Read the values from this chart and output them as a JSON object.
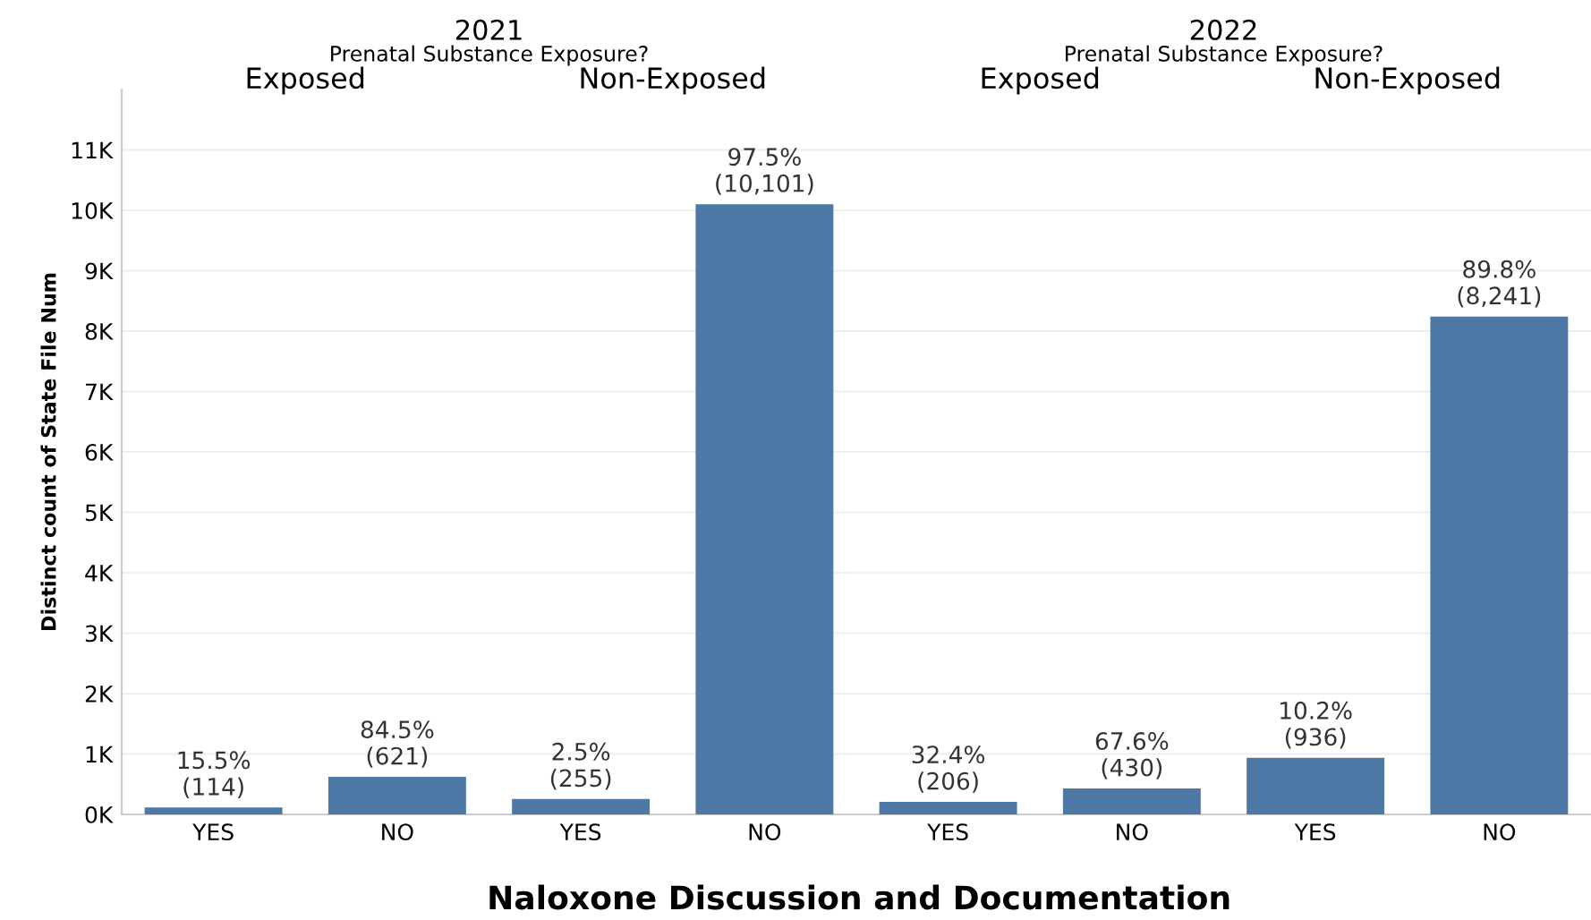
{
  "chart_data": {
    "type": "bar",
    "title": "Naloxone Discussion and Documentation",
    "ylabel": "Distinct count of State File Num",
    "categories": [
      "YES",
      "NO",
      "YES",
      "NO",
      "YES",
      "NO",
      "YES",
      "NO"
    ],
    "values": [
      114,
      621,
      255,
      10101,
      206,
      430,
      936,
      8241
    ],
    "color": "#4e79a7",
    "value_labels": [
      "15.5%\n(114)",
      "84.5%\n(621)",
      "2.5%\n(255)",
      "97.5%\n(10,101)",
      "32.4%\n(206)",
      "67.6%\n(430)",
      "10.2%\n(936)",
      "89.8%\n(8,241)"
    ],
    "ylim": [
      0,
      12000
    ],
    "yticks": [
      {
        "value": 0,
        "label": "0K"
      },
      {
        "value": 1000,
        "label": "1K"
      },
      {
        "value": 2000,
        "label": "2K"
      },
      {
        "value": 3000,
        "label": "3K"
      },
      {
        "value": 4000,
        "label": "4K"
      },
      {
        "value": 5000,
        "label": "5K"
      },
      {
        "value": 6000,
        "label": "6K"
      },
      {
        "value": 7000,
        "label": "7K"
      },
      {
        "value": 8000,
        "label": "8K"
      },
      {
        "value": 9000,
        "label": "9K"
      },
      {
        "value": 10000,
        "label": "10K"
      },
      {
        "value": 11000,
        "label": "11K"
      }
    ],
    "grid": "y",
    "annotations": [
      "2021",
      "Prenatal Substance Exposure?",
      "Exposed",
      "Non-Exposed",
      "2022",
      "Prenatal Substance Exposure?",
      "Exposed",
      "Non-Exposed"
    ]
  }
}
